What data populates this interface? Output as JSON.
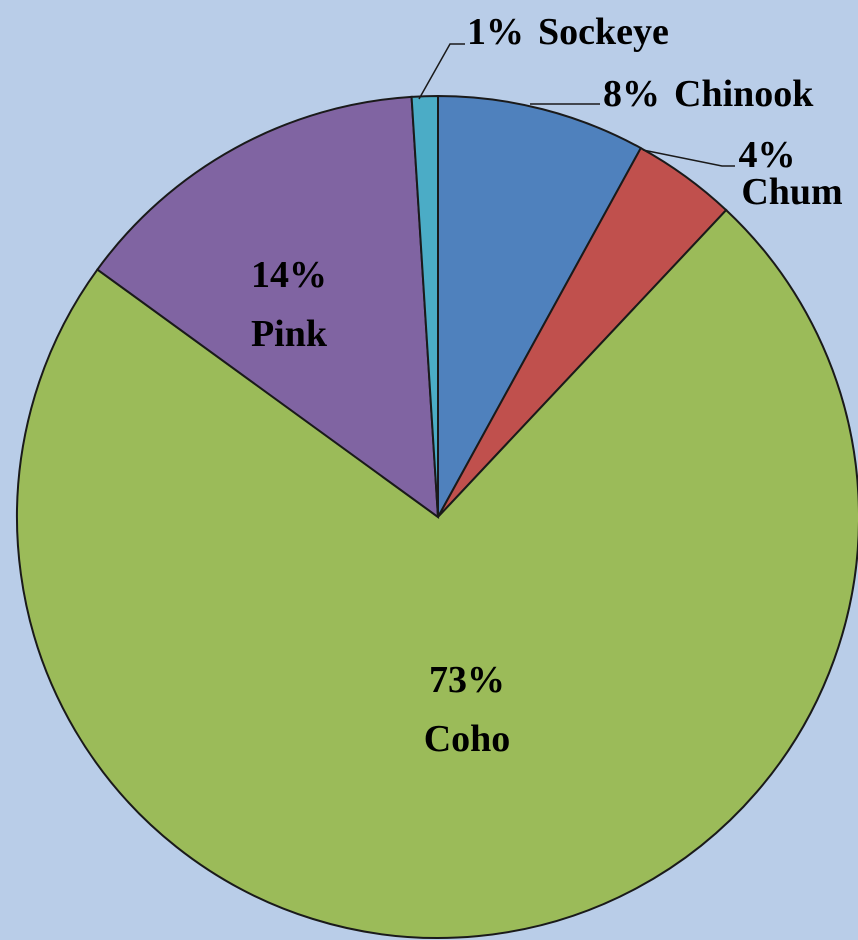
{
  "chart_data": {
    "type": "pie",
    "slices": [
      {
        "category": "Chinook",
        "pct_label": "8%",
        "value": 8,
        "color": "#4f81bd"
      },
      {
        "category": "Chum",
        "pct_label": "4%",
        "value": 4,
        "color": "#c0504d"
      },
      {
        "category": "Coho",
        "pct_label": "73%",
        "value": 73,
        "color": "#9bbb59"
      },
      {
        "category": "Pink",
        "pct_label": "14%",
        "value": 14,
        "color": "#8064a2"
      },
      {
        "category": "Sockeye",
        "pct_label": "1%",
        "value": 1,
        "color": "#4bacc6"
      }
    ],
    "background": "#b9cde8",
    "start_angle": "12 o'clock",
    "direction": "clockwise",
    "legend": "none"
  }
}
